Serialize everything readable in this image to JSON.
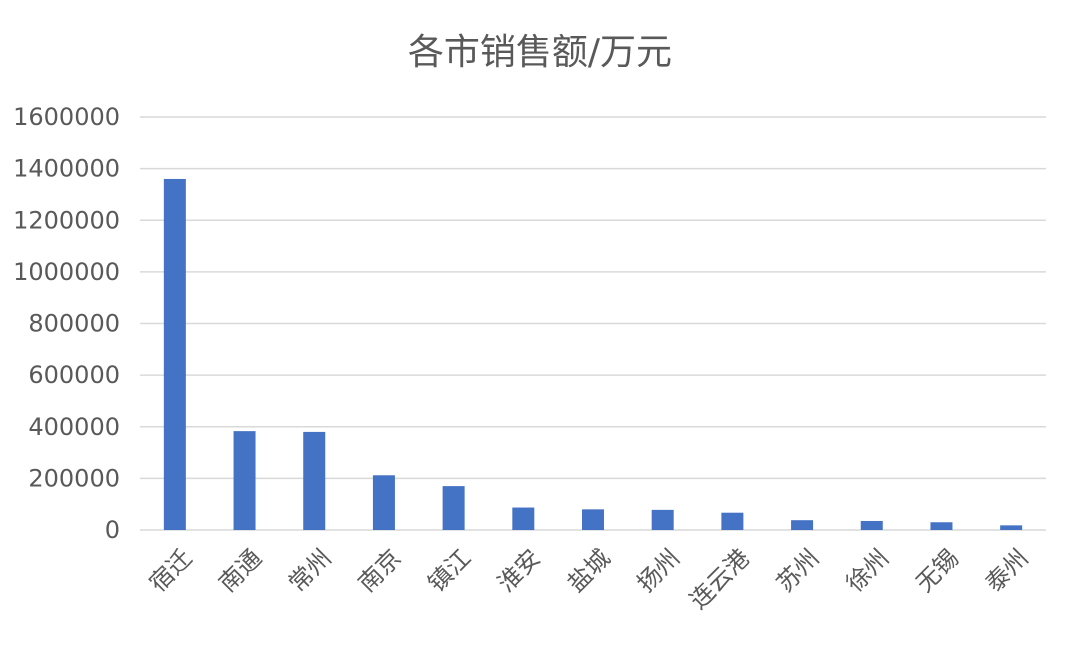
{
  "chart_data": {
    "type": "bar",
    "title": "各市销售额/万元",
    "xlabel": "",
    "ylabel": "",
    "categories": [
      "宿迁",
      "南通",
      "常州",
      "南京",
      "镇江",
      "淮安",
      "盐城",
      "扬州",
      "连云港",
      "苏州",
      "徐州",
      "无锡",
      "泰州"
    ],
    "values": [
      1360000,
      383000,
      380000,
      212000,
      170000,
      87000,
      80000,
      78000,
      67000,
      38000,
      35000,
      30000,
      18000
    ],
    "ylim": [
      0,
      1600000
    ],
    "yticks": [
      0,
      200000,
      400000,
      600000,
      800000,
      1000000,
      1200000,
      1400000,
      1600000
    ],
    "ytick_labels": [
      "0",
      "200000",
      "400000",
      "600000",
      "800000",
      "1000000",
      "1200000",
      "1400000",
      "1600000"
    ],
    "grid": true,
    "legend": "none",
    "bar_color": "#4472c4",
    "grid_color": "#d9d9d9",
    "text_color": "#595959"
  }
}
